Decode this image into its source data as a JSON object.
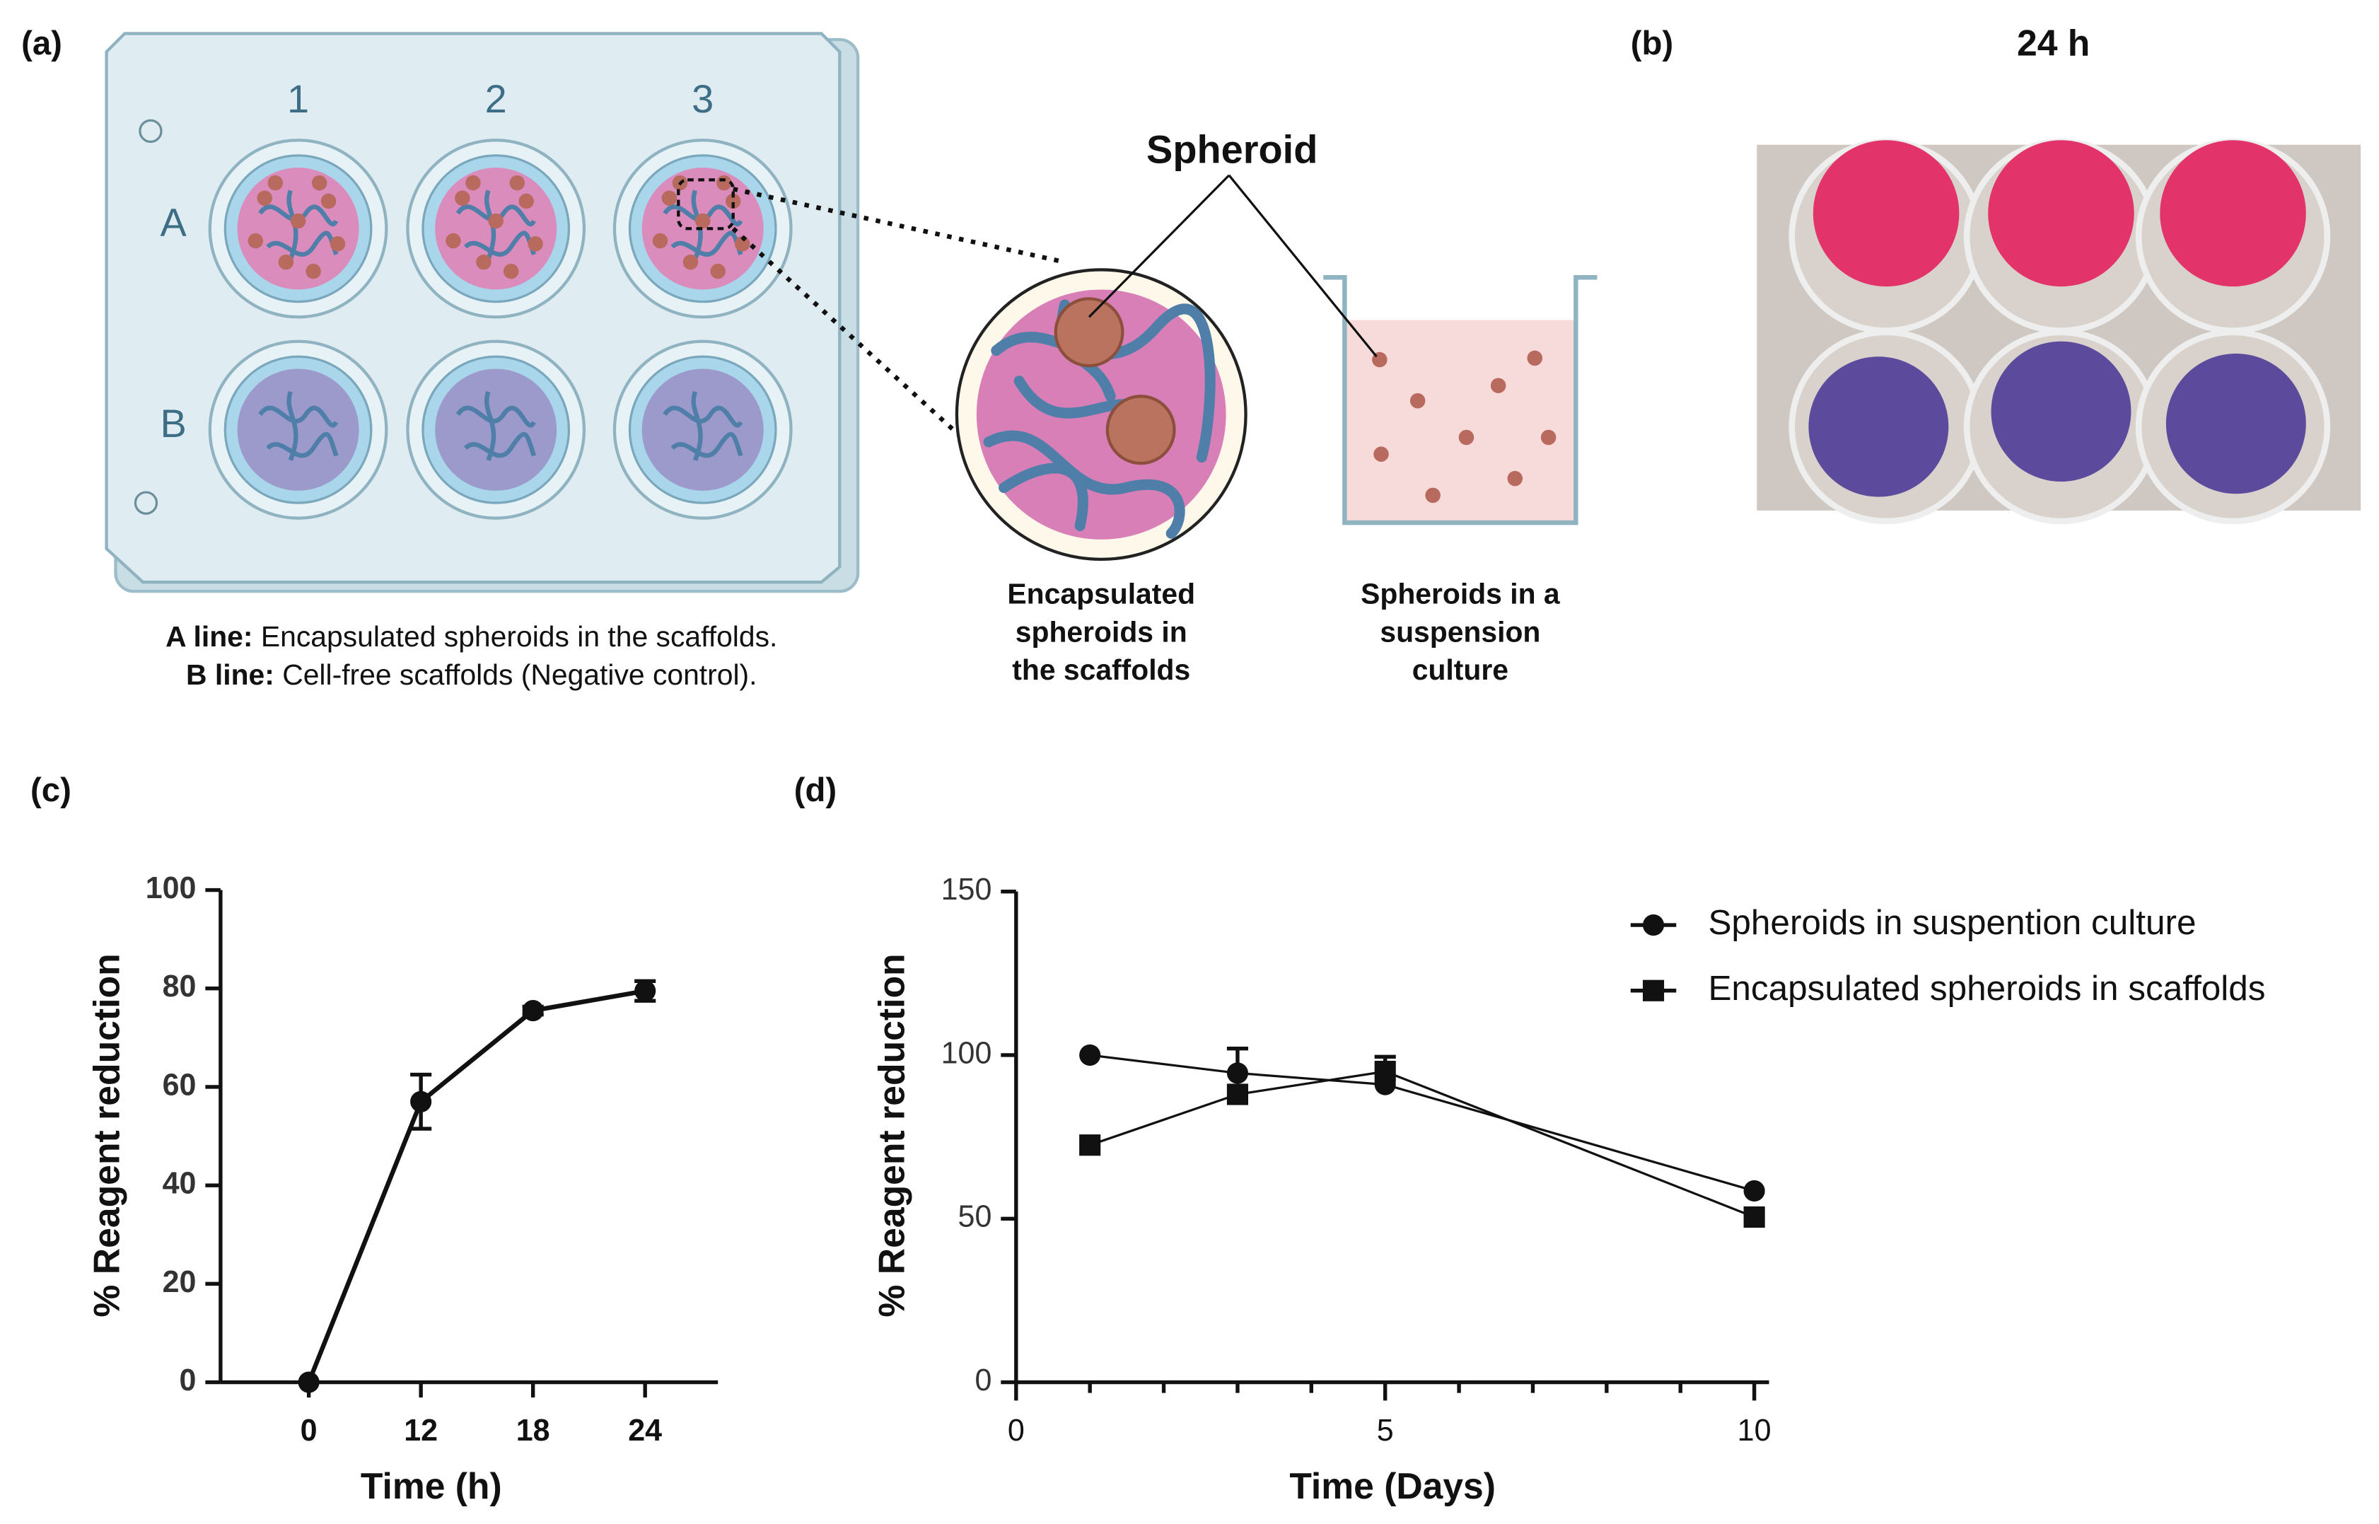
{
  "panels": [
    "(a)",
    "(b)",
    "(c)",
    "(d)"
  ],
  "diagram": {
    "columns": [
      "1",
      "2",
      "3"
    ],
    "rows": [
      "A",
      "B"
    ],
    "callout": "Spheroid",
    "scaffold_caption": [
      "Encapsulated",
      "spheroids in",
      "the scaffolds"
    ],
    "suspension_caption": [
      "Spheroids in a",
      "suspension",
      "culture"
    ],
    "legend": [
      {
        "key": "A line:",
        "text": "Encapsulated spheroids in the scaffolds."
      },
      {
        "key": "B line:",
        "text": "Cell-free scaffolds (Negative control)."
      }
    ]
  },
  "photo": {
    "title": "24 h"
  },
  "chart_data": [
    {
      "type": "line",
      "x_label": "Time (h)",
      "y_label": "% Reagent reduction",
      "categories": [
        "0",
        "12",
        "18",
        "24"
      ],
      "series": [
        {
          "color": "#111111",
          "marker": "circle",
          "values": [
            0,
            57,
            75.5,
            79.5
          ],
          "errors": [
            0,
            5.5,
            0.8,
            2
          ]
        }
      ],
      "ylim": [
        0,
        100
      ],
      "yticks": [
        0,
        20,
        40,
        60,
        80,
        100
      ]
    },
    {
      "type": "line",
      "x_label": "Time (Days)",
      "y_label": "% Reagent reduction",
      "x": [
        1,
        3,
        5,
        10
      ],
      "series": [
        {
          "name": "Spheroids in suspention culture",
          "color": "#111111",
          "marker": "circle",
          "values": [
            100,
            94.5,
            91,
            58.5
          ],
          "errors": [
            0,
            7.5,
            0,
            0
          ]
        },
        {
          "name": "Encapsulated spheroids in scaffolds",
          "color": "#111111",
          "marker": "square",
          "values": [
            72.5,
            88,
            95,
            50.5
          ],
          "errors": [
            0,
            0,
            4.5,
            0
          ]
        }
      ],
      "xlim": [
        0,
        10.2
      ],
      "xticks": [
        0,
        5,
        10
      ],
      "xminorticks": [
        1,
        2,
        3,
        4,
        6,
        7,
        8,
        9
      ],
      "ylim": [
        0,
        150
      ],
      "yticks": [
        0,
        50,
        100,
        150
      ],
      "legend": "upper right"
    }
  ]
}
